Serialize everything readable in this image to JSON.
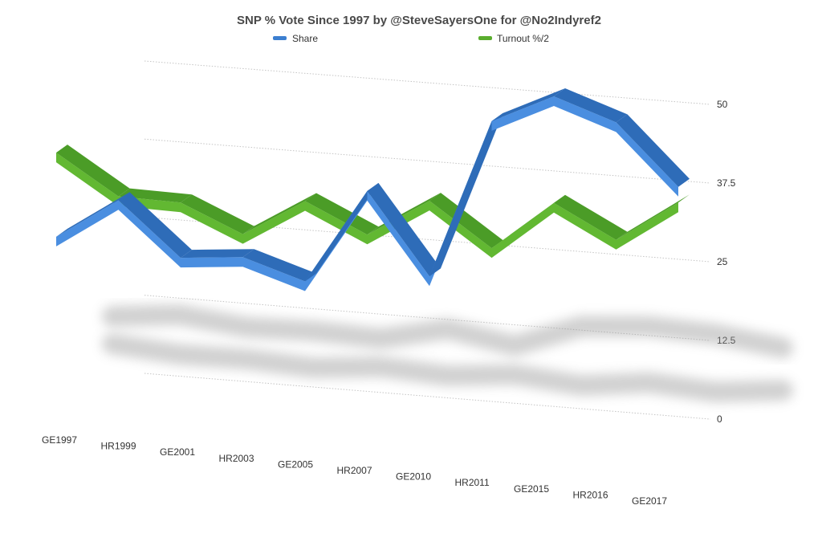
{
  "chart_data": {
    "type": "line",
    "title": "SNP % Vote Since 1997 by @SteveSayersOne for @No2Indyref2",
    "categories": [
      "GE1997",
      "HR1999",
      "GE2001",
      "HR2003",
      "GE2005",
      "HR2007",
      "GE2010",
      "HR2011",
      "GE2015",
      "HR2016",
      "GE2017"
    ],
    "series": [
      {
        "name": "Share",
        "color": "#3c7fd0",
        "values": [
          22.1,
          28.7,
          20.1,
          20.9,
          17.7,
          32.9,
          19.9,
          45.4,
          50.0,
          46.5,
          36.9
        ]
      },
      {
        "name": "Turnout %/2",
        "color": "#5aad2e",
        "values": [
          35.7,
          29.3,
          29.0,
          24.6,
          30.6,
          25.9,
          32.0,
          25.1,
          33.0,
          27.8,
          34.4
        ]
      }
    ],
    "y_ticks": [
      "0",
      "12.5",
      "25",
      "37.5",
      "50"
    ],
    "ylim": [
      0,
      50
    ],
    "grid": true,
    "legend_position": "top"
  }
}
